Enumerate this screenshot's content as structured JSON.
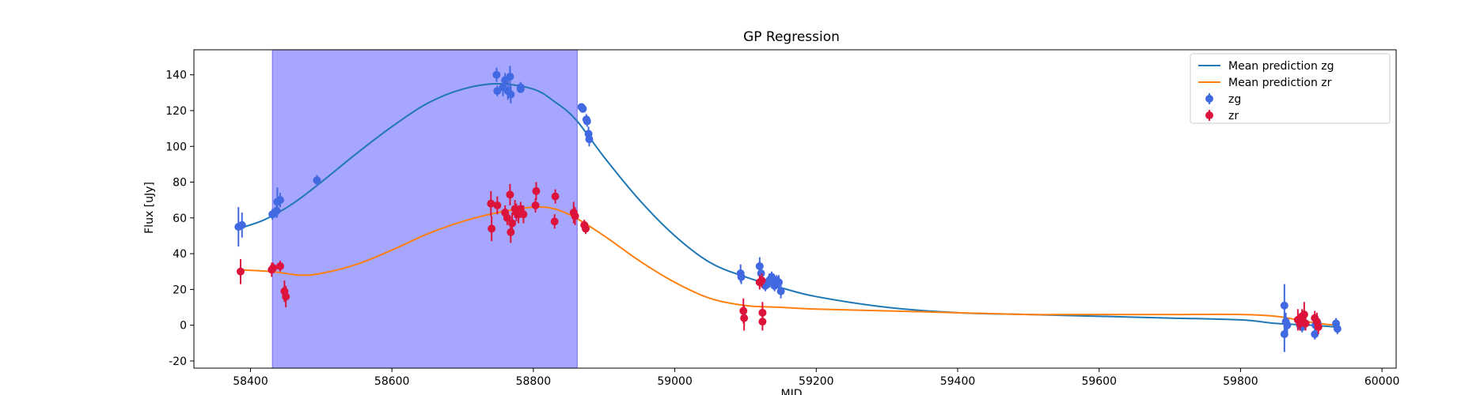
{
  "chart_data": {
    "type": "scatter",
    "title": "GP Regression",
    "xlabel": "MJD",
    "ylabel": "Flux [uJy]",
    "xlim": [
      58320,
      60020
    ],
    "ylim": [
      -24,
      154
    ],
    "xticks": [
      58400,
      58600,
      58800,
      59000,
      59200,
      59400,
      59600,
      59800,
      60000
    ],
    "yticks": [
      -20,
      0,
      20,
      40,
      60,
      80,
      100,
      120,
      140
    ],
    "grid": false,
    "legend_position": "top-right",
    "shaded_region": {
      "x": [
        58431,
        58862
      ],
      "color": "#a6a6ff"
    },
    "lines": [
      {
        "name": "Mean prediction zg",
        "color": "#1f77b4",
        "x": [
          58383,
          58420,
          58460,
          58500,
          58550,
          58600,
          58650,
          58700,
          58750,
          58800,
          58830,
          58860,
          58900,
          58950,
          59000,
          59050,
          59100,
          59150,
          59200,
          59300,
          59400,
          59500,
          59600,
          59700,
          59800,
          59850,
          59900,
          59935
        ],
        "y": [
          54,
          59,
          68,
          80,
          96,
          111,
          124,
          132,
          135,
          132,
          125,
          115,
          94,
          70,
          50,
          35,
          27,
          21,
          16,
          10,
          7,
          6,
          5,
          4,
          3,
          1,
          0,
          -1
        ]
      },
      {
        "name": "Mean prediction zr",
        "color": "#ff7f0e",
        "x": [
          58383,
          58430,
          58470,
          58500,
          58550,
          58600,
          58650,
          58700,
          58750,
          58800,
          58830,
          58860,
          58900,
          58950,
          59000,
          59050,
          59100,
          59150,
          59200,
          59300,
          59400,
          59500,
          59600,
          59700,
          59800,
          59850,
          59880,
          59910,
          59935
        ],
        "y": [
          31,
          30,
          28,
          29,
          34,
          42,
          51,
          58,
          63,
          66,
          65,
          60,
          50,
          36,
          24,
          15,
          11,
          10,
          9,
          8,
          7,
          6,
          6,
          6,
          6,
          5,
          3,
          1,
          0
        ]
      }
    ],
    "series": [
      {
        "name": "zg",
        "color": "#4169e1",
        "points": [
          [
            58383,
            55,
            11
          ],
          [
            58388,
            56,
            7
          ],
          [
            58431,
            62,
            3
          ],
          [
            58437,
            64,
            4
          ],
          [
            58438,
            69,
            8
          ],
          [
            58442,
            70,
            4
          ],
          [
            58494,
            81,
            3
          ],
          [
            58748,
            140,
            4
          ],
          [
            58749,
            131,
            3
          ],
          [
            58757,
            133,
            5
          ],
          [
            58760,
            137,
            4
          ],
          [
            58764,
            131,
            5
          ],
          [
            58767,
            139,
            6
          ],
          [
            58768,
            129,
            5
          ],
          [
            58782,
            133,
            3
          ],
          [
            58782,
            132,
            2
          ],
          [
            58868,
            122,
            2
          ],
          [
            58870,
            121,
            2
          ],
          [
            58875,
            115,
            3
          ],
          [
            58876,
            114,
            3
          ],
          [
            58878,
            107,
            4
          ],
          [
            58879,
            104,
            4
          ],
          [
            59093,
            29,
            5
          ],
          [
            59094,
            27,
            4
          ],
          [
            59120,
            33,
            5
          ],
          [
            59122,
            29,
            5
          ],
          [
            59128,
            22,
            3
          ],
          [
            59131,
            24,
            3
          ],
          [
            59134,
            25,
            4
          ],
          [
            59137,
            27,
            3
          ],
          [
            59141,
            22,
            3
          ],
          [
            59144,
            25,
            3
          ],
          [
            59147,
            24,
            4
          ],
          [
            59150,
            19,
            4
          ],
          [
            59862,
            11,
            12
          ],
          [
            59864,
            2,
            5
          ],
          [
            59866,
            0,
            4
          ],
          [
            59862,
            -5,
            10
          ],
          [
            59884,
            0,
            3
          ],
          [
            59887,
            -1,
            3
          ],
          [
            59905,
            -5,
            3
          ],
          [
            59906,
            0,
            3
          ],
          [
            59909,
            1,
            3
          ],
          [
            59935,
            1,
            3
          ],
          [
            59937,
            -2,
            3
          ]
        ]
      },
      {
        "name": "zr",
        "color": "#dc143c",
        "points": [
          [
            58386,
            30,
            7
          ],
          [
            58430,
            31,
            4
          ],
          [
            58432,
            32,
            3
          ],
          [
            58442,
            33,
            3
          ],
          [
            58448,
            19,
            6
          ],
          [
            58450,
            16,
            6
          ],
          [
            58740,
            68,
            7
          ],
          [
            58741,
            54,
            7
          ],
          [
            58749,
            67,
            5
          ],
          [
            58760,
            63,
            4
          ],
          [
            58763,
            60,
            4
          ],
          [
            58767,
            73,
            6
          ],
          [
            58768,
            52,
            6
          ],
          [
            58770,
            57,
            6
          ],
          [
            58774,
            65,
            5
          ],
          [
            58776,
            63,
            5
          ],
          [
            58779,
            62,
            5
          ],
          [
            58782,
            65,
            4
          ],
          [
            58786,
            62,
            5
          ],
          [
            58803,
            67,
            4
          ],
          [
            58804,
            75,
            5
          ],
          [
            58830,
            58,
            4
          ],
          [
            58831,
            72,
            4
          ],
          [
            58857,
            63,
            6
          ],
          [
            58859,
            61,
            5
          ],
          [
            58872,
            56,
            3
          ],
          [
            58874,
            54,
            3
          ],
          [
            59097,
            8,
            7
          ],
          [
            59098,
            4,
            7
          ],
          [
            59120,
            24,
            4
          ],
          [
            59123,
            25,
            4
          ],
          [
            59124,
            7,
            6
          ],
          [
            59124,
            2,
            5
          ],
          [
            59881,
            3,
            6
          ],
          [
            59884,
            1,
            4
          ],
          [
            59887,
            5,
            4
          ],
          [
            59890,
            6,
            7
          ],
          [
            59892,
            1,
            4
          ],
          [
            59905,
            4,
            4
          ],
          [
            59908,
            2,
            5
          ],
          [
            59910,
            -1,
            4
          ]
        ]
      }
    ]
  }
}
